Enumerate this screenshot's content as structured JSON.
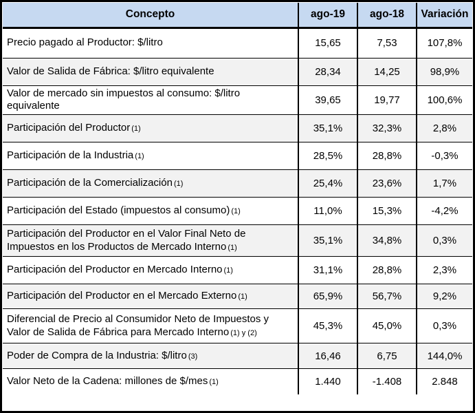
{
  "colors": {
    "header_bg": "#C6D9F1",
    "alt_row_bg": "#F2F2F2",
    "border": "#000000",
    "text": "#000000"
  },
  "table": {
    "columns": [
      "Concepto",
      "ago-19",
      "ago-18",
      "Variación"
    ],
    "rows": [
      {
        "concept": "Precio pagado al Productor: $/litro",
        "note": "",
        "ago19": "15,65",
        "ago18": "7,53",
        "variacion": "107,8%"
      },
      {
        "concept": "Valor de Salida de Fábrica: $/litro equivalente",
        "note": "",
        "ago19": "28,34",
        "ago18": "14,25",
        "variacion": "98,9%"
      },
      {
        "concept": "Valor de mercado sin impuestos al consumo: $/litro equivalente",
        "note": "",
        "ago19": "39,65",
        "ago18": "19,77",
        "variacion": "100,6%"
      },
      {
        "concept": "Participación del Productor",
        "note": "(1)",
        "ago19": "35,1%",
        "ago18": "32,3%",
        "variacion": "2,8%"
      },
      {
        "concept": "Participación de la Industria",
        "note": "(1)",
        "ago19": "28,5%",
        "ago18": "28,8%",
        "variacion": "-0,3%"
      },
      {
        "concept": "Participación de la Comercialización",
        "note": "(1)",
        "ago19": "25,4%",
        "ago18": "23,6%",
        "variacion": "1,7%"
      },
      {
        "concept": "Participación del Estado (impuestos al consumo)",
        "note": "(1)",
        "ago19": "11,0%",
        "ago18": "15,3%",
        "variacion": "-4,2%"
      },
      {
        "concept": "Participación del Productor en el Valor Final Neto de Impuestos en los Productos de Mercado Interno",
        "note": "(1)",
        "ago19": "35,1%",
        "ago18": "34,8%",
        "variacion": "0,3%"
      },
      {
        "concept": "Participación del Productor en Mercado Interno",
        "note": "(1)",
        "ago19": "31,1%",
        "ago18": "28,8%",
        "variacion": "2,3%"
      },
      {
        "concept": "Participación del Productor en el Mercado Externo",
        "note": "(1)",
        "ago19": "65,9%",
        "ago18": "56,7%",
        "variacion": "9,2%"
      },
      {
        "concept": "Diferencial de Precio al Consumidor Neto de Impuestos y Valor de Salida de Fábrica para Mercado Interno",
        "note": "(1) y (2)",
        "ago19": "45,3%",
        "ago18": "45,0%",
        "variacion": "0,3%"
      },
      {
        "concept": "Poder de Compra de la Industria: $/litro",
        "note": "(3)",
        "ago19": "16,46",
        "ago18": "6,75",
        "variacion": "144,0%"
      },
      {
        "concept": "Valor Neto de la Cadena: millones de $/mes",
        "note": "(1)",
        "ago19": "1.440",
        "ago18": "-1.408",
        "variacion": "2.848"
      }
    ]
  }
}
